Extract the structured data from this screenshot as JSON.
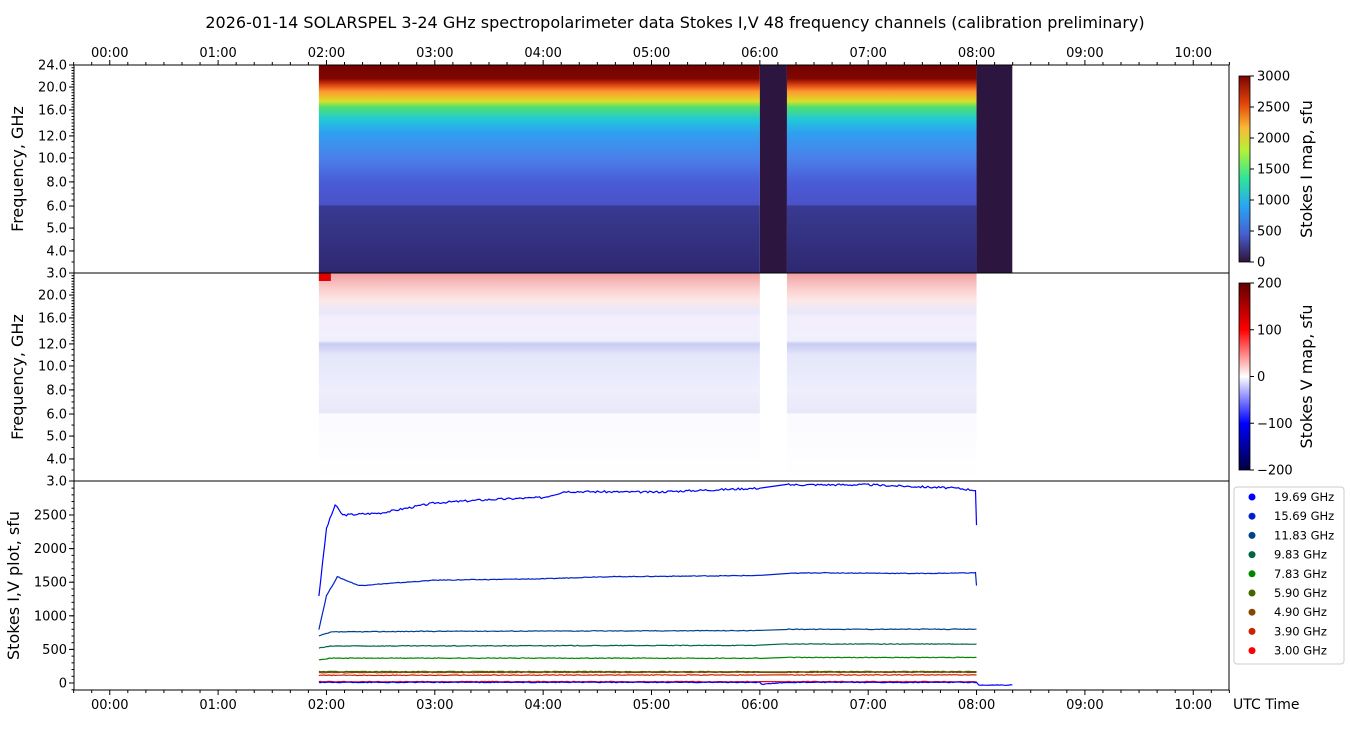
{
  "chart_data": {
    "title": "2026-01-14  SOLARSPEL  3-24 GHz spectropolarimeter data   Stokes I,V   48 frequency channels   (calibration preliminary)",
    "time_axis": {
      "label": "UTC Time",
      "range_hours": [
        -0.33,
        10.33
      ],
      "ticks": [
        0,
        1,
        2,
        3,
        4,
        5,
        6,
        7,
        8,
        9,
        10
      ],
      "tick_labels": [
        "00:00",
        "01:00",
        "02:00",
        "03:00",
        "04:00",
        "05:00",
        "06:00",
        "07:00",
        "08:00",
        "09:00",
        "10:00"
      ]
    },
    "panels": [
      {
        "type": "heatmap",
        "name": "stokes-i-map",
        "ylabel": "Frequency, GHz",
        "yticks": [
          "24.0",
          "20.0",
          "16.0",
          "12.0",
          "10.0",
          "8.0",
          "6.0",
          "5.0",
          "4.0",
          "3.0"
        ],
        "ytick_values": [
          24,
          20,
          16,
          12,
          10,
          8,
          6,
          5,
          4,
          3
        ],
        "colorbar": {
          "label": "Stokes I map, sfu",
          "range": [
            0,
            3000
          ],
          "ticks": [
            "3000",
            "2500",
            "2000",
            "1500",
            "1000",
            "500",
            "0"
          ],
          "tick_values": [
            3000,
            2500,
            2000,
            1500,
            1000,
            500,
            0
          ]
        },
        "data_intervals_hours": [
          [
            1.93,
            6.0
          ],
          [
            6.25,
            8.0
          ]
        ],
        "gap_intervals_hours": [
          [
            6.0,
            6.25
          ],
          [
            8.0,
            8.33
          ]
        ]
      },
      {
        "type": "heatmap",
        "name": "stokes-v-map",
        "ylabel": "Frequency, GHz",
        "yticks": [
          "20.0",
          "16.0",
          "12.0",
          "10.0",
          "8.0",
          "6.0",
          "5.0",
          "4.0",
          "3.0"
        ],
        "ytick_values": [
          20,
          16,
          12,
          10,
          8,
          6,
          5,
          4,
          3
        ],
        "colorbar": {
          "label": "Stokes V map, sfu",
          "range": [
            -200,
            200
          ],
          "ticks": [
            "200",
            "100",
            "0",
            "−100",
            "−200"
          ],
          "tick_values": [
            200,
            100,
            0,
            -100,
            -200
          ]
        },
        "data_intervals_hours": [
          [
            1.93,
            6.0
          ],
          [
            6.25,
            8.0
          ]
        ]
      },
      {
        "type": "line",
        "name": "stokes-iv-plot",
        "ylabel": "Stokes I,V plot, sfu",
        "ylim": [
          -104,
          3006
        ],
        "yticks": [
          "0",
          "500",
          "1000",
          "1500",
          "2000",
          "2500"
        ],
        "ytick_values": [
          0,
          500,
          1000,
          1500,
          2000,
          2500
        ],
        "legend_position": "right",
        "series": [
          {
            "name": "19.69 GHz",
            "color": "#0000ff",
            "x": [
              1.93,
              2.0,
              2.08,
              2.15,
              2.5,
              3.0,
              3.5,
              4.0,
              4.2,
              5.0,
              6.0,
              6.25,
              7.0,
              7.8,
              7.99,
              8.0
            ],
            "y": [
              1300,
              2300,
              2650,
              2500,
              2530,
              2680,
              2730,
              2760,
              2850,
              2840,
              2900,
              2950,
              2950,
              2900,
              2870,
              2350
            ]
          },
          {
            "name": "15.69 GHz",
            "color": "#0022cc",
            "x": [
              1.93,
              2.0,
              2.1,
              2.3,
              3.0,
              4.0,
              4.5,
              6.0,
              6.25,
              6.5,
              7.5,
              7.99,
              8.0
            ],
            "y": [
              800,
              1300,
              1580,
              1450,
              1530,
              1550,
              1580,
              1600,
              1630,
              1640,
              1630,
              1640,
              1450
            ]
          },
          {
            "name": "11.83 GHz",
            "color": "#004488",
            "x": [
              1.93,
              2.05,
              3.0,
              6.0,
              6.25,
              8.0
            ],
            "y": [
              700,
              760,
              770,
              780,
              800,
              800
            ]
          },
          {
            "name": "9.83 GHz",
            "color": "#006644",
            "x": [
              1.93,
              2.05,
              6.0,
              6.25,
              8.0
            ],
            "y": [
              520,
              550,
              560,
              580,
              580
            ]
          },
          {
            "name": "7.83 GHz",
            "color": "#008800",
            "x": [
              1.93,
              2.05,
              6.0,
              6.25,
              8.0
            ],
            "y": [
              350,
              370,
              370,
              380,
              380
            ]
          },
          {
            "name": "5.90 GHz",
            "color": "#446600",
            "x": [
              1.93,
              6.0,
              6.25,
              8.0
            ],
            "y": [
              170,
              170,
              170,
              170
            ]
          },
          {
            "name": "4.90 GHz",
            "color": "#884400",
            "x": [
              1.93,
              6.0,
              6.25,
              8.0
            ],
            "y": [
              155,
              160,
              160,
              160
            ]
          },
          {
            "name": "3.90 GHz",
            "color": "#cc2200",
            "x": [
              1.93,
              6.0,
              6.25,
              8.0
            ],
            "y": [
              115,
              120,
              120,
              120
            ]
          },
          {
            "name": "3.00 GHz",
            "color": "#ff0000",
            "x": [
              1.93,
              6.0,
              6.25,
              8.0
            ],
            "y": [
              20,
              20,
              20,
              20
            ]
          },
          {
            "name": "V",
            "color": "#0000ff",
            "x": [
              1.93,
              6.0,
              6.02,
              6.25,
              8.0,
              8.02,
              8.33
            ],
            "y": [
              10,
              10,
              -20,
              10,
              10,
              -30,
              -30
            ]
          }
        ]
      }
    ]
  }
}
